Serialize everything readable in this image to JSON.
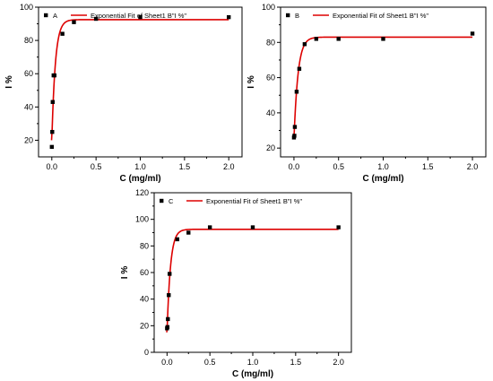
{
  "chart_data": [
    {
      "type": "scatter",
      "panel": "A",
      "xlabel": "C (mg/ml)",
      "ylabel": "I %",
      "xlim": [
        -0.15,
        2.15
      ],
      "ylim": [
        10,
        100
      ],
      "xticks": [
        "0.0",
        "0.5",
        "1.0",
        "1.5",
        "2.0"
      ],
      "yticks": [
        "20",
        "40",
        "60",
        "80",
        "100"
      ],
      "ytick_values": [
        20,
        40,
        60,
        80,
        100
      ],
      "legend": {
        "position": "top-left",
        "scatter_label": "A",
        "fit_label": "Exponential Fit of Sheet1 B\"I %\""
      },
      "series": [
        {
          "name": "A",
          "x": [
            0.0,
            0.005,
            0.01,
            0.02,
            0.03,
            0.12,
            0.25,
            0.5,
            1.0,
            2.0
          ],
          "y": [
            16,
            25,
            43,
            59,
            59,
            84,
            91,
            93,
            94,
            94
          ]
        }
      ],
      "fit": {
        "name": "Exponential Fit of Sheet1 B\"I %\"",
        "y0": 20,
        "ymax": 92.5,
        "k": 25
      }
    },
    {
      "type": "scatter",
      "panel": "B",
      "xlabel": "C (mg/ml)",
      "ylabel": "I %",
      "xlim": [
        -0.15,
        2.15
      ],
      "ylim": [
        15,
        100
      ],
      "xticks": [
        "0.0",
        "0.5",
        "1.0",
        "1.5",
        "2.0"
      ],
      "yticks": [
        "20",
        "40",
        "60",
        "80",
        "100"
      ],
      "ytick_values": [
        20,
        40,
        60,
        80,
        100
      ],
      "legend": {
        "position": "top-left",
        "scatter_label": "B",
        "fit_label": "Exponential Fit of Sheet1 B\"I %\""
      },
      "series": [
        {
          "name": "B",
          "x": [
            0.0,
            0.005,
            0.01,
            0.03,
            0.06,
            0.12,
            0.25,
            0.5,
            1.0,
            2.0
          ],
          "y": [
            26,
            27,
            32,
            52,
            65,
            79,
            82,
            82,
            82,
            85
          ]
        }
      ],
      "fit": {
        "name": "Exponential Fit of Sheet1 B\"I %\"",
        "y0": 25,
        "ymax": 83,
        "k": 22
      }
    },
    {
      "type": "scatter",
      "panel": "C",
      "xlabel": "C (mg/ml)",
      "ylabel": "I %",
      "xlim": [
        -0.15,
        2.15
      ],
      "ylim": [
        0,
        120
      ],
      "xticks": [
        "0.0",
        "0.5",
        "1.0",
        "1.5",
        "2.0"
      ],
      "yticks": [
        "0",
        "20",
        "40",
        "60",
        "80",
        "100",
        "120"
      ],
      "ytick_values": [
        0,
        20,
        40,
        60,
        80,
        100,
        120
      ],
      "legend": {
        "position": "top-left",
        "scatter_label": "C",
        "fit_label": "Exponential Fit of Sheet1 B\"I %\""
      },
      "series": [
        {
          "name": "C",
          "x": [
            0.0,
            0.005,
            0.01,
            0.02,
            0.03,
            0.12,
            0.25,
            0.5,
            1.0,
            2.0
          ],
          "y": [
            18,
            19,
            25,
            43,
            59,
            85,
            90,
            94,
            94,
            94
          ]
        }
      ],
      "fit": {
        "name": "Exponential Fit of Sheet1 B\"I %\"",
        "y0": 15,
        "ymax": 92.5,
        "k": 25
      }
    }
  ]
}
